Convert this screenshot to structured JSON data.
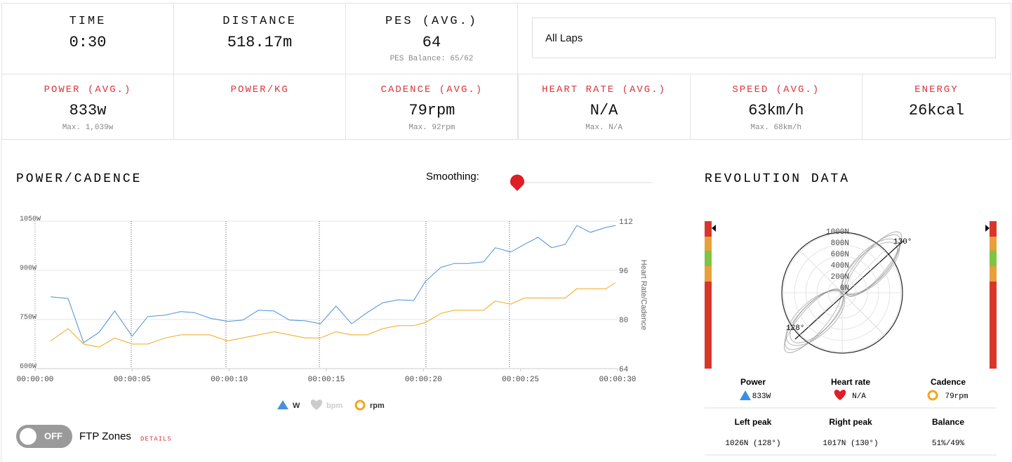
{
  "summary": [
    {
      "label": "TIME",
      "value": "0:30"
    },
    {
      "label": "DISTANCE",
      "value": "518.17m"
    },
    {
      "label": "PES (AVG.)",
      "value": "64",
      "detail": "PES Balance: 65/62"
    }
  ],
  "lap_select": "All Laps",
  "metrics": [
    {
      "label": "POWER (AVG.)",
      "value": "833w",
      "detail": "Max. 1,039w"
    },
    {
      "label": "POWER/KG"
    },
    {
      "label": "CADENCE (AVG.)",
      "value": "79rpm",
      "detail": "Max. 92rpm"
    },
    {
      "label": "HEART RATE (AVG.)",
      "value": "N/A",
      "detail": "Max. N/A"
    },
    {
      "label": "SPEED (AVG.)",
      "value": "63km/h",
      "detail": "Max. 68km/h"
    },
    {
      "label": "ENERGY",
      "value": "26kcal"
    }
  ],
  "power_cadence": {
    "title": "POWER/CADENCE",
    "smoothing_label": "Smoothing:",
    "chart_data": {
      "type": "line",
      "x": [
        0.8,
        1.7,
        2.5,
        3.3,
        4.1,
        5.0,
        5.8,
        6.7,
        7.5,
        8.2,
        9.0,
        9.9,
        10.7,
        11.5,
        12.3,
        13.1,
        13.9,
        14.7,
        15.5,
        16.3,
        17.1,
        17.9,
        18.7,
        19.5,
        20.1,
        20.9,
        21.6,
        22.3,
        23.1,
        23.7,
        24.5,
        25.2,
        25.9,
        26.6,
        27.3,
        27.9,
        28.6,
        29.4,
        29.9
      ],
      "series": [
        {
          "name": "W",
          "color": "#4a90d9",
          "values": [
            819,
            814,
            679,
            711,
            776,
            699,
            759,
            763,
            774,
            771,
            754,
            744,
            748,
            778,
            776,
            748,
            746,
            737,
            791,
            737,
            771,
            801,
            810,
            808,
            866,
            909,
            921,
            921,
            926,
            969,
            956,
            979,
            1001,
            969,
            979,
            1037,
            1016,
            1031,
            1037
          ]
        },
        {
          "name": "bpm",
          "color": "#cccccc",
          "axis": "y2",
          "values": [
            null,
            null,
            null,
            null,
            null,
            null,
            null,
            null,
            null,
            null,
            null,
            null,
            null,
            null,
            null,
            null,
            null,
            null,
            null,
            null,
            null,
            null,
            null,
            null,
            null,
            null,
            null,
            null,
            null,
            null,
            null,
            null,
            null,
            null,
            null,
            null,
            null,
            null,
            null
          ]
        },
        {
          "name": "rpm",
          "color": "#f0a81c",
          "axis": "y2",
          "values": [
            73,
            77,
            72,
            71,
            74,
            72,
            72,
            74,
            75,
            75,
            75,
            73,
            74,
            75,
            76,
            75,
            74,
            74,
            76,
            75,
            75,
            77,
            78,
            78,
            79,
            82,
            83,
            83,
            83,
            86,
            85,
            87,
            87,
            87,
            87,
            90,
            90,
            90,
            92
          ]
        }
      ],
      "xlim": [
        0,
        30
      ],
      "xticks": [
        {
          "value": 0,
          "label": "00:00:00"
        },
        {
          "value": 5,
          "label": "00:00:05"
        },
        {
          "value": 10,
          "label": "00:00:10"
        },
        {
          "value": 15,
          "label": "00:00:15"
        },
        {
          "value": 20,
          "label": "00:00:20"
        },
        {
          "value": 25,
          "label": "00:00:25"
        },
        {
          "value": 30,
          "label": "00:00:30"
        }
      ],
      "ylim": [
        600,
        1050
      ],
      "yticks": [
        {
          "value": 600,
          "label": "600W"
        },
        {
          "value": 750,
          "label": "750W"
        },
        {
          "value": 900,
          "label": "900W"
        },
        {
          "value": 1050,
          "label": "1050W"
        }
      ],
      "y2lim": [
        64,
        112
      ],
      "y2ticks": [
        64,
        80,
        96,
        112
      ],
      "y2label": "Heart Rate/Cadence",
      "lap_markers": [
        4.95,
        9.83,
        14.64,
        20.13,
        24.43
      ],
      "grid": true
    }
  },
  "ftp": {
    "toggle": "OFF",
    "label": "FTP Zones",
    "link": "DETAILS"
  },
  "revolution": {
    "title": "REVOLUTION DATA",
    "radial_ticks": [
      {
        "value": 0,
        "label": "0N"
      },
      {
        "value": 200,
        "label": "200N"
      },
      {
        "value": 400,
        "label": "400N"
      },
      {
        "value": 600,
        "label": "600N"
      },
      {
        "value": 800,
        "label": "800N"
      },
      {
        "value": 1000,
        "label": "1000N"
      }
    ],
    "angle_labels": [
      "130°",
      "128°"
    ],
    "legend": [
      {
        "name": "Power",
        "value": "833W"
      },
      {
        "name": "Heart rate",
        "value": "N/A"
      },
      {
        "name": "Cadence",
        "value": "79rpm"
      }
    ],
    "peaks": [
      {
        "name": "Left peak",
        "value": "1026N (128°)"
      },
      {
        "name": "Right peak",
        "value": "1017N (130°)"
      },
      {
        "name": "Balance",
        "value": "51%/49%"
      }
    ]
  }
}
